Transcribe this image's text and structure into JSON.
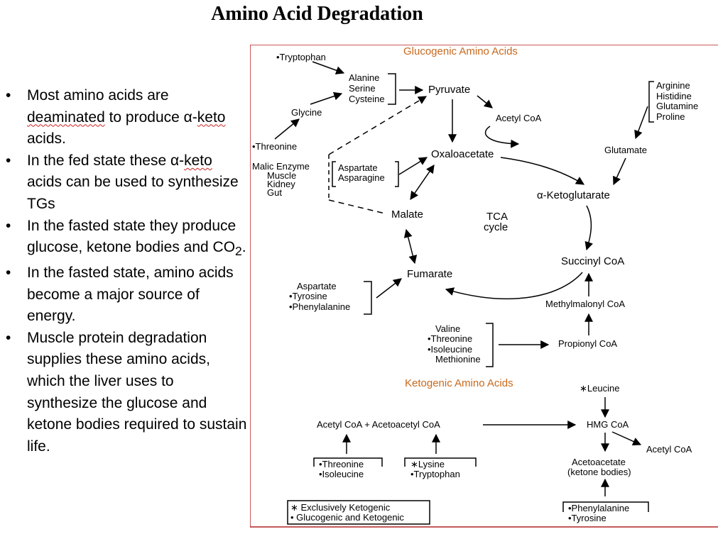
{
  "title": "Amino Acid Degradation",
  "bullets": [
    {
      "parts": [
        "Most amino acids are ",
        "deaminated",
        " to produce α-",
        "keto",
        " acids."
      ]
    },
    {
      "parts": [
        "In the fed state these α-",
        "keto",
        " acids can be used to synthesize TGs"
      ]
    },
    {
      "parts": [
        "In the fasted state they produce glucose, ketone bodies and CO",
        "2",
        "."
      ]
    },
    {
      "parts": [
        "In the fasted state, amino acids become a major source of energy."
      ]
    },
    {
      "parts": [
        "Muscle protein degradation supplies these amino acids, which the liver uses to synthesize the glucose and ketone bodies required to sustain life."
      ]
    }
  ],
  "diagram": {
    "section_glucogenic": "Glucogenic Amino Acids",
    "section_ketogenic": "Ketogenic Amino Acids",
    "tryptophan": "•Tryptophan",
    "alanine": "Alanine",
    "serine": "Serine",
    "cysteine": "Cysteine",
    "glycine": "Glycine",
    "threonine": "•Threonine",
    "pyruvate": "Pyruvate",
    "acetyl_coa": "Acetyl CoA",
    "arginine": "Arginine",
    "histidine": "Histidine",
    "glutamine": "Glutamine",
    "proline": "Proline",
    "glutamate": "Glutamate",
    "malic_enzyme": [
      "Malic Enzyme",
      "Muscle",
      "Kidney",
      "Gut"
    ],
    "aspartate": "Aspartate",
    "asparagine": "Asparagine",
    "oxaloacetate": "Oxaloacetate",
    "alpha_ketoglutarate": "α-Ketoglutarate",
    "malate": "Malate",
    "tca": [
      "TCA",
      "cycle"
    ],
    "succinyl_coa": "Succinyl CoA",
    "fumarate": "Fumarate",
    "fumarate_sources": [
      "Aspartate",
      "•Tyrosine",
      "•Phenylalanine"
    ],
    "methylmalonyl_coa": "Methylmalonyl CoA",
    "propionyl_sources": [
      "Valine",
      "•Threonine",
      "•Isoleucine",
      "Methionine"
    ],
    "propionyl_coa": "Propionyl CoA",
    "leucine": "∗Leucine",
    "hmg_coa": "HMG CoA",
    "acetyl_coa_right": "Acetyl CoA",
    "acetoacetate": [
      "Acetoacetate",
      "(ketone bodies)"
    ],
    "keto_left": "Acetyl CoA  +  Acetoacetyl CoA",
    "threonine_box": [
      "•Threonine",
      "•Isoleucine"
    ],
    "lysine_box": [
      "∗Lysine",
      "•Tryptophan"
    ],
    "phe_box": [
      "•Phenylalanine",
      "•Tyrosine"
    ],
    "legend": [
      "∗ Exclusively Ketogenic",
      "• Glucogenic and Ketogenic"
    ]
  }
}
